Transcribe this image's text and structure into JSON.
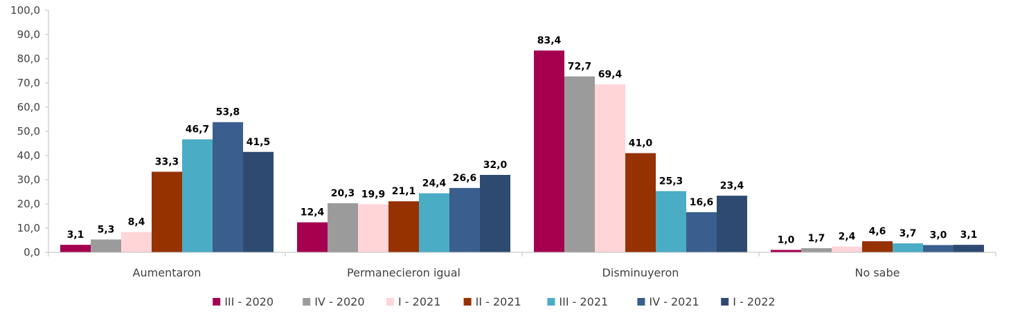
{
  "chart_data": {
    "type": "bar",
    "categories": [
      "Aumentaron",
      "Permanecieron igual",
      "Disminuyeron",
      "No sabe"
    ],
    "series": [
      {
        "name": "III - 2020",
        "color": "#A50050",
        "values": [
          3.1,
          12.4,
          83.4,
          1.0
        ]
      },
      {
        "name": "IV - 2020",
        "color": "#9B9B9B",
        "values": [
          5.3,
          20.3,
          72.7,
          1.7
        ]
      },
      {
        "name": "I - 2021",
        "color": "#FFD5D8",
        "values": [
          8.4,
          19.9,
          69.4,
          2.4
        ]
      },
      {
        "name": "II - 2021",
        "color": "#963200",
        "values": [
          33.3,
          21.1,
          41.0,
          4.6
        ]
      },
      {
        "name": "III - 2021",
        "color": "#4BACC6",
        "values": [
          46.7,
          24.4,
          25.3,
          3.7
        ]
      },
      {
        "name": "IV - 2021",
        "color": "#3A5F8F",
        "values": [
          53.8,
          26.6,
          16.6,
          3.0
        ]
      },
      {
        "name": "I - 2022",
        "color": "#2E4A70",
        "values": [
          41.5,
          32.0,
          23.4,
          3.1
        ]
      }
    ],
    "ylim": [
      0,
      100
    ],
    "yticks": [
      "0,0",
      "10,0",
      "20,0",
      "30,0",
      "40,0",
      "50,0",
      "60,0",
      "70,0",
      "80,0",
      "90,0",
      "100,0"
    ],
    "xlabel": "",
    "ylabel": "",
    "grid": false,
    "legend_position": "bottom",
    "value_format": "one decimal, comma separator"
  }
}
